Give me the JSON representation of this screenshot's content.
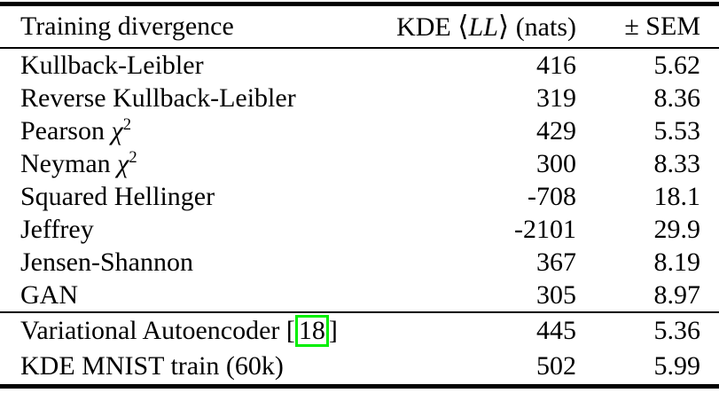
{
  "colors": {
    "text": "#000000",
    "rule": "#000000",
    "citation_box_border": "#00ee00",
    "background": "#ffffff"
  },
  "table": {
    "header": {
      "col1": "Training divergence",
      "col2": {
        "prefix": "KDE ",
        "langle": "⟨",
        "math": "LL",
        "rangle": "⟩",
        "suffix": " (nats)"
      },
      "col3": "± SEM"
    },
    "rows": [
      {
        "label": "Kullback-Leibler",
        "value": "416",
        "sem": "5.62"
      },
      {
        "label": "Reverse Kullback-Leibler",
        "value": "319",
        "sem": "8.36"
      },
      {
        "label": "Pearson ",
        "math": "χ",
        "sup": "2",
        "value": "429",
        "sem": "5.53"
      },
      {
        "label": "Neyman ",
        "math": "χ",
        "sup": "2",
        "value": "300",
        "sem": "8.33"
      },
      {
        "label": "Squared Hellinger",
        "value": "-708",
        "sem": "18.1"
      },
      {
        "label": "Jeffrey",
        "value": "-2101",
        "sem": "29.9"
      },
      {
        "label": "Jensen-Shannon",
        "value": "367",
        "sem": "8.19"
      },
      {
        "label": "GAN",
        "value": "305",
        "sem": "8.97"
      }
    ],
    "footer_rows": [
      {
        "label": "Variational Autoencoder [",
        "cite": "18",
        "label_end": "]",
        "value": "445",
        "sem": "5.36"
      },
      {
        "label": "KDE MNIST train (60k)",
        "value": "502",
        "sem": "5.99"
      }
    ]
  },
  "chart_data": {
    "type": "table",
    "title": "",
    "columns": [
      "Training divergence",
      "KDE ⟨LL⟩ (nats)",
      "± SEM"
    ],
    "categories": [
      "Kullback-Leibler",
      "Reverse Kullback-Leibler",
      "Pearson χ2",
      "Neyman χ2",
      "Squared Hellinger",
      "Jeffrey",
      "Jensen-Shannon",
      "GAN",
      "Variational Autoencoder [18]",
      "KDE MNIST train (60k)"
    ],
    "series": [
      {
        "name": "KDE ⟨LL⟩ (nats)",
        "values": [
          416,
          319,
          429,
          300,
          -708,
          -2101,
          367,
          305,
          445,
          502
        ]
      },
      {
        "name": "± SEM",
        "values": [
          5.62,
          8.36,
          5.53,
          8.33,
          18.1,
          29.9,
          8.19,
          8.97,
          5.36,
          5.99
        ]
      }
    ]
  }
}
